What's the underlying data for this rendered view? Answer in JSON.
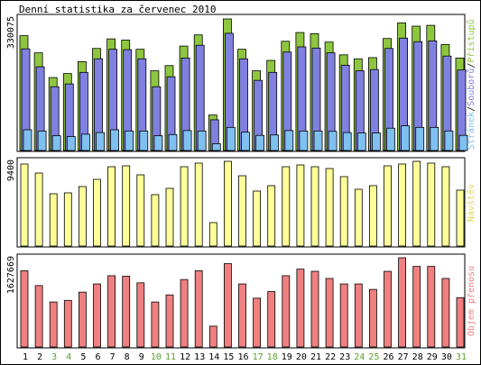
{
  "title": "Denní statistika za červenec 2010",
  "colors": {
    "hits": "#8ec63f",
    "files": "#8080e0",
    "pages": "#80c0f0",
    "visits": "#ffff99",
    "volume": "#f08080",
    "weekend": "#5aa02c",
    "weekday": "#000000"
  },
  "chart_data": [
    {
      "type": "bar",
      "categories": [
        "1",
        "2",
        "3",
        "4",
        "5",
        "6",
        "7",
        "8",
        "9",
        "10",
        "11",
        "12",
        "13",
        "14",
        "15",
        "16",
        "17",
        "18",
        "19",
        "20",
        "21",
        "22",
        "23",
        "24",
        "25",
        "26",
        "27",
        "28",
        "29",
        "30",
        "31"
      ],
      "ymax_label": "330075",
      "ylim": [
        0,
        330075
      ],
      "legend": {
        "pages": "Stránek",
        "files": "Souborů",
        "hits": "Přístupů",
        "sep": "/"
      },
      "series": [
        {
          "name": "Přístupů",
          "values": [
            288000,
            245000,
            183000,
            193000,
            223000,
            256000,
            280000,
            277000,
            254000,
            200000,
            213000,
            262000,
            290000,
            89000,
            330075,
            254000,
            200000,
            226000,
            274000,
            296000,
            293000,
            272000,
            240000,
            230000,
            233000,
            281000,
            320000,
            312000,
            314000,
            266000,
            232000
          ]
        },
        {
          "name": "Souborů",
          "values": [
            255000,
            210000,
            160000,
            167000,
            196000,
            230000,
            254000,
            253000,
            230000,
            160000,
            185000,
            232000,
            264000,
            77000,
            294000,
            230000,
            176000,
            196000,
            247000,
            260000,
            257000,
            245000,
            214000,
            200000,
            203000,
            256000,
            282000,
            273000,
            275000,
            237000,
            202000
          ]
        },
        {
          "name": "Stránek",
          "values": [
            52000,
            49000,
            37000,
            35000,
            41000,
            45000,
            52000,
            49000,
            49000,
            37000,
            40000,
            50000,
            49000,
            17000,
            58000,
            46000,
            38000,
            39000,
            50000,
            49000,
            49000,
            48000,
            45000,
            44000,
            44000,
            56000,
            62000,
            58000,
            58000,
            49000,
            38000
          ]
        }
      ]
    },
    {
      "type": "bar",
      "categories": [
        "1",
        "2",
        "3",
        "4",
        "5",
        "6",
        "7",
        "8",
        "9",
        "10",
        "11",
        "12",
        "13",
        "14",
        "15",
        "16",
        "17",
        "18",
        "19",
        "20",
        "21",
        "22",
        "23",
        "24",
        "25",
        "26",
        "27",
        "28",
        "29",
        "30",
        "31"
      ],
      "ymax_label": "9400",
      "ylim": [
        0,
        9400
      ],
      "legend": {
        "visits": "Návštěv"
      },
      "series": [
        {
          "name": "Návštěv",
          "values": [
            9100,
            8100,
            5800,
            5900,
            6600,
            7400,
            8800,
            8900,
            7900,
            5700,
            6400,
            8800,
            9200,
            2600,
            9400,
            7800,
            6100,
            6700,
            8800,
            9000,
            8800,
            8600,
            7700,
            6300,
            6700,
            8900,
            9100,
            9400,
            9200,
            8800,
            6200
          ]
        }
      ]
    },
    {
      "type": "bar",
      "categories": [
        "1",
        "2",
        "3",
        "4",
        "5",
        "6",
        "7",
        "8",
        "9",
        "10",
        "11",
        "12",
        "13",
        "14",
        "15",
        "16",
        "17",
        "18",
        "19",
        "20",
        "21",
        "22",
        "23",
        "24",
        "25",
        "26",
        "27",
        "28",
        "29",
        "30",
        "31"
      ],
      "ymax_label": "1627669",
      "ylim": [
        0,
        1627669
      ],
      "legend": {
        "volume": "Objem přenosu"
      },
      "series": [
        {
          "name": "Objem přenosu",
          "values": [
            1390000,
            1120000,
            820000,
            850000,
            1000000,
            1150000,
            1300000,
            1290000,
            1170000,
            820000,
            950000,
            1230000,
            1390000,
            380000,
            1520000,
            1150000,
            890000,
            1010000,
            1300000,
            1420000,
            1380000,
            1250000,
            1150000,
            1150000,
            1050000,
            1380000,
            1627669,
            1470000,
            1470000,
            1250000,
            900000
          ]
        }
      ]
    }
  ],
  "weekend_days": [
    3,
    4,
    10,
    11,
    17,
    18,
    24,
    25,
    31
  ]
}
